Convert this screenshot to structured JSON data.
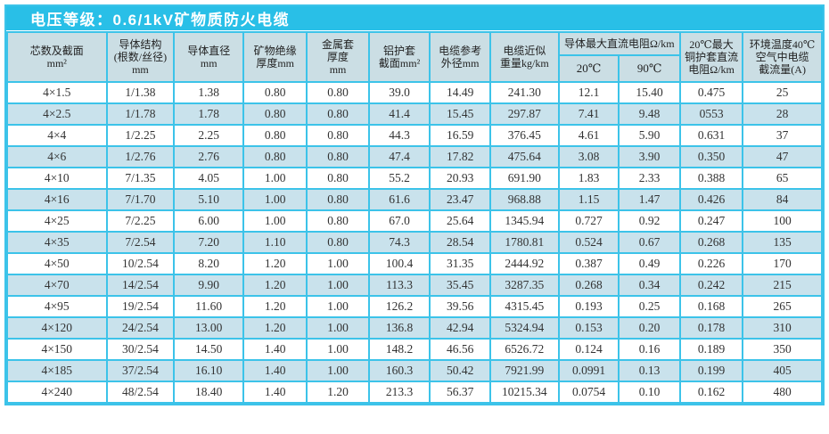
{
  "title": "电压等级：0.6/1kV矿物质防火电缆",
  "colors": {
    "accent": "#29BFE7",
    "border": "#3CC3E9",
    "header_bg": "#CBDEE4",
    "alt_row_bg": "#C9E2EC",
    "title_text": "#FFFFFF",
    "body_text": "#333333"
  },
  "table": {
    "col_widths_pct": [
      12.2,
      8.3,
      8.5,
      7.8,
      7.6,
      7.5,
      7.4,
      8.4,
      7.4,
      7.5,
      7.7,
      9.7
    ],
    "header_groups": [
      {
        "id": "core-section",
        "lines": [
          "芯数及截面",
          "mm²"
        ],
        "rowspan": 2
      },
      {
        "id": "conductor-structure",
        "lines": [
          "导体结构",
          "(根数/丝径)",
          "mm"
        ],
        "rowspan": 2
      },
      {
        "id": "conductor-diameter",
        "lines": [
          "导体直径",
          "mm"
        ],
        "rowspan": 2
      },
      {
        "id": "insulation-thickness",
        "lines": [
          "矿物绝缘",
          "厚度mm"
        ],
        "rowspan": 2
      },
      {
        "id": "metal-sheath-thickness",
        "lines": [
          "金属套",
          "厚度",
          "mm"
        ],
        "rowspan": 2
      },
      {
        "id": "al-sheath-section",
        "lines": [
          "铝护套",
          "截面mm²"
        ],
        "rowspan": 2
      },
      {
        "id": "reference-od",
        "lines": [
          "电缆参考",
          "外径mm"
        ],
        "rowspan": 2
      },
      {
        "id": "approx-weight",
        "lines": [
          "电缆近似",
          "重量kg/km"
        ],
        "rowspan": 2
      },
      {
        "id": "dc-resistance-group",
        "lines": [
          "导体最大直流电阻Ω/km"
        ],
        "colspan": 2
      },
      {
        "id": "cu-sheath-resistance",
        "lines": [
          "20℃最大",
          "铜护套直流",
          "电阻Ω/km"
        ],
        "rowspan": 2
      },
      {
        "id": "ampacity",
        "lines": [
          "环境温度40℃",
          "空气中电缆",
          "截流量(A)"
        ],
        "rowspan": 2
      }
    ],
    "sub_headers": [
      {
        "id": "dc-resistance-20c",
        "label": "20℃"
      },
      {
        "id": "dc-resistance-90c",
        "label": "90℃"
      }
    ],
    "rows": [
      [
        "4×1.5",
        "1/1.38",
        "1.38",
        "0.80",
        "0.80",
        "39.0",
        "14.49",
        "241.30",
        "12.1",
        "15.40",
        "0.475",
        "25"
      ],
      [
        "4×2.5",
        "1/1.78",
        "1.78",
        "0.80",
        "0.80",
        "41.4",
        "15.45",
        "297.87",
        "7.41",
        "9.48",
        "0553",
        "28"
      ],
      [
        "4×4",
        "1/2.25",
        "2.25",
        "0.80",
        "0.80",
        "44.3",
        "16.59",
        "376.45",
        "4.61",
        "5.90",
        "0.631",
        "37"
      ],
      [
        "4×6",
        "1/2.76",
        "2.76",
        "0.80",
        "0.80",
        "47.4",
        "17.82",
        "475.64",
        "3.08",
        "3.90",
        "0.350",
        "47"
      ],
      [
        "4×10",
        "7/1.35",
        "4.05",
        "1.00",
        "0.80",
        "55.2",
        "20.93",
        "691.90",
        "1.83",
        "2.33",
        "0.388",
        "65"
      ],
      [
        "4×16",
        "7/1.70",
        "5.10",
        "1.00",
        "0.80",
        "61.6",
        "23.47",
        "968.88",
        "1.15",
        "1.47",
        "0.426",
        "84"
      ],
      [
        "4×25",
        "7/2.25",
        "6.00",
        "1.00",
        "0.80",
        "67.0",
        "25.64",
        "1345.94",
        "0.727",
        "0.92",
        "0.247",
        "100"
      ],
      [
        "4×35",
        "7/2.54",
        "7.20",
        "1.10",
        "0.80",
        "74.3",
        "28.54",
        "1780.81",
        "0.524",
        "0.67",
        "0.268",
        "135"
      ],
      [
        "4×50",
        "10/2.54",
        "8.20",
        "1.20",
        "1.00",
        "100.4",
        "31.35",
        "2444.92",
        "0.387",
        "0.49",
        "0.226",
        "170"
      ],
      [
        "4×70",
        "14/2.54",
        "9.90",
        "1.20",
        "1.00",
        "113.3",
        "35.45",
        "3287.35",
        "0.268",
        "0.34",
        "0.242",
        "215"
      ],
      [
        "4×95",
        "19/2.54",
        "11.60",
        "1.20",
        "1.00",
        "126.2",
        "39.56",
        "4315.45",
        "0.193",
        "0.25",
        "0.168",
        "265"
      ],
      [
        "4×120",
        "24/2.54",
        "13.00",
        "1.20",
        "1.00",
        "136.8",
        "42.94",
        "5324.94",
        "0.153",
        "0.20",
        "0.178",
        "310"
      ],
      [
        "4×150",
        "30/2.54",
        "14.50",
        "1.40",
        "1.00",
        "148.2",
        "46.56",
        "6526.72",
        "0.124",
        "0.16",
        "0.189",
        "350"
      ],
      [
        "4×185",
        "37/2.54",
        "16.10",
        "1.40",
        "1.00",
        "160.3",
        "50.42",
        "7921.99",
        "0.0991",
        "0.13",
        "0.199",
        "405"
      ],
      [
        "4×240",
        "48/2.54",
        "18.40",
        "1.40",
        "1.20",
        "213.3",
        "56.37",
        "10215.34",
        "0.0754",
        "0.10",
        "0.162",
        "480"
      ]
    ]
  }
}
